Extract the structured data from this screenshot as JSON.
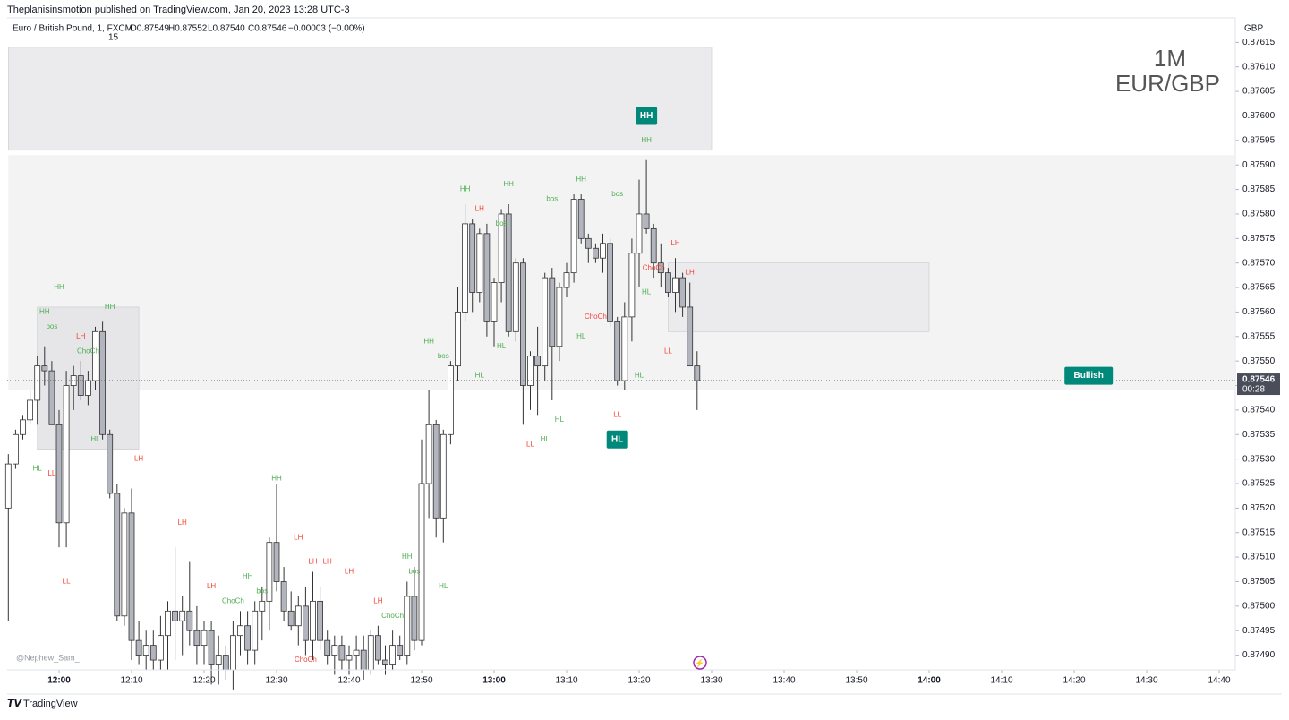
{
  "header": {
    "publisher": "Theplanisinsmotion published on TradingView.com, Jan 20, 2023 13:28 UTC-3",
    "symbol": "Euro / British Pound, 1, FXCM",
    "open": "O0.87549",
    "high": "H0.87552",
    "low": "L0.87540",
    "close": "C0.87546",
    "change": "−0.00003 (−0.00%)",
    "counter": "15"
  },
  "watermark": {
    "interval": "1M",
    "pair": "EUR/GBP"
  },
  "footer": {
    "author": "@Nephew_Sam_",
    "brand": "TradingView"
  },
  "chart_data": {
    "type": "candlestick",
    "currency": "GBP",
    "x": [
      "11:53",
      "11:54",
      "11:55",
      "11:56",
      "11:57",
      "11:58",
      "11:59",
      "12:00",
      "12:01",
      "12:02",
      "12:03",
      "12:04",
      "12:05",
      "12:06",
      "12:07",
      "12:08",
      "12:09",
      "12:10",
      "12:11",
      "12:12",
      "12:13",
      "12:14",
      "12:15",
      "12:16",
      "12:17",
      "12:18",
      "12:19",
      "12:20",
      "12:21",
      "12:22",
      "12:23",
      "12:24",
      "12:25",
      "12:26",
      "12:27",
      "12:28",
      "12:29",
      "12:30",
      "12:31",
      "12:32",
      "12:33",
      "12:34",
      "12:35",
      "12:36",
      "12:37",
      "12:38",
      "12:39",
      "12:40",
      "12:41",
      "12:42",
      "12:43",
      "12:44",
      "12:45",
      "12:46",
      "12:47",
      "12:48",
      "12:49",
      "12:50",
      "12:51",
      "12:52",
      "12:53",
      "12:54",
      "12:55",
      "12:56",
      "12:57",
      "12:58",
      "12:59",
      "13:00",
      "13:01",
      "13:02",
      "13:03",
      "13:04",
      "13:05",
      "13:06",
      "13:07",
      "13:08",
      "13:09",
      "13:10",
      "13:11",
      "13:12",
      "13:13",
      "13:14",
      "13:15",
      "13:16",
      "13:17",
      "13:18",
      "13:19",
      "13:20",
      "13:21",
      "13:22",
      "13:23",
      "13:24",
      "13:25",
      "13:26",
      "13:27",
      "13:28"
    ],
    "ohlc": [
      [
        0.8752,
        0.87531,
        0.87497,
        0.87529
      ],
      [
        0.87529,
        0.87536,
        0.87528,
        0.87535
      ],
      [
        0.87535,
        0.87539,
        0.87534,
        0.87538
      ],
      [
        0.87538,
        0.87544,
        0.87537,
        0.87542
      ],
      [
        0.87542,
        0.87551,
        0.87537,
        0.87549
      ],
      [
        0.87549,
        0.87553,
        0.87545,
        0.87548
      ],
      [
        0.87548,
        0.8755,
        0.87537,
        0.87537
      ],
      [
        0.87537,
        0.8754,
        0.87512,
        0.87517
      ],
      [
        0.87517,
        0.87548,
        0.87512,
        0.87545
      ],
      [
        0.87545,
        0.87549,
        0.8754,
        0.87547
      ],
      [
        0.87547,
        0.8755,
        0.87542,
        0.87543
      ],
      [
        0.87543,
        0.87548,
        0.87541,
        0.87546
      ],
      [
        0.87546,
        0.87557,
        0.87544,
        0.87556
      ],
      [
        0.87556,
        0.87558,
        0.87534,
        0.87535
      ],
      [
        0.87535,
        0.87536,
        0.87522,
        0.87523
      ],
      [
        0.87523,
        0.87525,
        0.87497,
        0.87498
      ],
      [
        0.87498,
        0.8752,
        0.87496,
        0.87519
      ],
      [
        0.87519,
        0.87524,
        0.87489,
        0.87493
      ],
      [
        0.87493,
        0.87497,
        0.87488,
        0.8749
      ],
      [
        0.8749,
        0.87495,
        0.87487,
        0.87492
      ],
      [
        0.87492,
        0.87495,
        0.87487,
        0.87489
      ],
      [
        0.87489,
        0.87498,
        0.87487,
        0.87494
      ],
      [
        0.87494,
        0.87501,
        0.87487,
        0.87499
      ],
      [
        0.87499,
        0.87512,
        0.87489,
        0.87497
      ],
      [
        0.87497,
        0.87502,
        0.8749,
        0.87499
      ],
      [
        0.87499,
        0.87509,
        0.87492,
        0.87495
      ],
      [
        0.87495,
        0.875,
        0.87488,
        0.87492
      ],
      [
        0.87492,
        0.87497,
        0.87488,
        0.87495
      ],
      [
        0.87495,
        0.87497,
        0.87484,
        0.87488
      ],
      [
        0.87488,
        0.87494,
        0.87484,
        0.8749
      ],
      [
        0.8749,
        0.87492,
        0.87485,
        0.87487
      ],
      [
        0.87487,
        0.87497,
        0.87483,
        0.87494
      ],
      [
        0.87494,
        0.87499,
        0.8749,
        0.87496
      ],
      [
        0.87496,
        0.87499,
        0.87488,
        0.87491
      ],
      [
        0.87491,
        0.87501,
        0.87488,
        0.87499
      ],
      [
        0.87499,
        0.87504,
        0.87493,
        0.87501
      ],
      [
        0.87501,
        0.87514,
        0.87495,
        0.87513
      ],
      [
        0.87513,
        0.87525,
        0.87503,
        0.87505
      ],
      [
        0.87505,
        0.87508,
        0.87497,
        0.87499
      ],
      [
        0.87499,
        0.87503,
        0.87495,
        0.87496
      ],
      [
        0.87496,
        0.87502,
        0.87492,
        0.875
      ],
      [
        0.875,
        0.87504,
        0.8749,
        0.87493
      ],
      [
        0.87493,
        0.87507,
        0.87489,
        0.87501
      ],
      [
        0.87501,
        0.87504,
        0.87491,
        0.87493
      ],
      [
        0.87493,
        0.87495,
        0.87488,
        0.8749
      ],
      [
        0.8749,
        0.87494,
        0.87486,
        0.87492
      ],
      [
        0.87492,
        0.87494,
        0.87487,
        0.87489
      ],
      [
        0.87489,
        0.87492,
        0.87486,
        0.8749
      ],
      [
        0.8749,
        0.87494,
        0.87487,
        0.87491
      ],
      [
        0.87491,
        0.87494,
        0.87485,
        0.87487
      ],
      [
        0.87487,
        0.87495,
        0.87486,
        0.87494
      ],
      [
        0.87494,
        0.87496,
        0.87488,
        0.87489
      ],
      [
        0.87489,
        0.87492,
        0.87486,
        0.87488
      ],
      [
        0.87488,
        0.87495,
        0.87487,
        0.87492
      ],
      [
        0.87492,
        0.87494,
        0.87489,
        0.8749
      ],
      [
        0.8749,
        0.87505,
        0.87488,
        0.87502
      ],
      [
        0.87502,
        0.87508,
        0.87491,
        0.87493
      ],
      [
        0.87493,
        0.87534,
        0.87492,
        0.87525
      ],
      [
        0.87525,
        0.87544,
        0.87518,
        0.87537
      ],
      [
        0.87537,
        0.87538,
        0.87514,
        0.87518
      ],
      [
        0.87518,
        0.87536,
        0.87513,
        0.87535
      ],
      [
        0.87535,
        0.8755,
        0.87533,
        0.87549
      ],
      [
        0.87549,
        0.87565,
        0.87546,
        0.8756
      ],
      [
        0.8756,
        0.87582,
        0.87558,
        0.87578
      ],
      [
        0.87578,
        0.87579,
        0.8756,
        0.87564
      ],
      [
        0.87564,
        0.87577,
        0.87562,
        0.87576
      ],
      [
        0.87576,
        0.87578,
        0.87555,
        0.87558
      ],
      [
        0.87558,
        0.87567,
        0.87553,
        0.87566
      ],
      [
        0.87566,
        0.87581,
        0.87562,
        0.8758
      ],
      [
        0.8758,
        0.87582,
        0.87555,
        0.87556
      ],
      [
        0.87556,
        0.87571,
        0.87554,
        0.8757
      ],
      [
        0.8757,
        0.87571,
        0.87537,
        0.87545
      ],
      [
        0.87545,
        0.87552,
        0.8754,
        0.87551
      ],
      [
        0.87551,
        0.87557,
        0.87539,
        0.87549
      ],
      [
        0.87549,
        0.87568,
        0.87546,
        0.87567
      ],
      [
        0.87567,
        0.87569,
        0.87542,
        0.87553
      ],
      [
        0.87553,
        0.87566,
        0.8755,
        0.87565
      ],
      [
        0.87565,
        0.8757,
        0.87563,
        0.87568
      ],
      [
        0.87568,
        0.87584,
        0.87566,
        0.87583
      ],
      [
        0.87583,
        0.87584,
        0.87574,
        0.87575
      ],
      [
        0.87575,
        0.87576,
        0.8757,
        0.87573
      ],
      [
        0.87573,
        0.87574,
        0.8757,
        0.87571
      ],
      [
        0.87571,
        0.87576,
        0.87568,
        0.87574
      ],
      [
        0.87574,
        0.87575,
        0.87557,
        0.87558
      ],
      [
        0.87558,
        0.87559,
        0.87545,
        0.87546
      ],
      [
        0.87546,
        0.87562,
        0.87544,
        0.87559
      ],
      [
        0.87559,
        0.87575,
        0.87554,
        0.87572
      ],
      [
        0.87572,
        0.87587,
        0.87565,
        0.8758
      ],
      [
        0.8758,
        0.87591,
        0.87576,
        0.87577
      ],
      [
        0.87577,
        0.87578,
        0.87567,
        0.8757
      ],
      [
        0.8757,
        0.87574,
        0.87565,
        0.87568
      ],
      [
        0.87568,
        0.87569,
        0.87563,
        0.87564
      ],
      [
        0.87564,
        0.87571,
        0.8756,
        0.87567
      ],
      [
        0.87567,
        0.87568,
        0.87559,
        0.87561
      ],
      [
        0.87561,
        0.87566,
        0.8755,
        0.87549
      ],
      [
        0.87549,
        0.87552,
        0.8754,
        0.87546
      ]
    ],
    "up_color": "#ffffff",
    "down_color": "#b2b5be",
    "wick_color": "#333333",
    "ylim": [
      0.87487,
      0.8762
    ],
    "yticks": [
      {
        "value": 0.8749,
        "label": "0.87490"
      },
      {
        "value": 0.87495,
        "label": "0.87495"
      },
      {
        "value": 0.875,
        "label": "0.87500"
      },
      {
        "value": 0.87505,
        "label": "0.87505"
      },
      {
        "value": 0.8751,
        "label": "0.87510"
      },
      {
        "value": 0.87515,
        "label": "0.87515"
      },
      {
        "value": 0.8752,
        "label": "0.87520"
      },
      {
        "value": 0.87525,
        "label": "0.87525"
      },
      {
        "value": 0.8753,
        "label": "0.87530"
      },
      {
        "value": 0.87535,
        "label": "0.87535"
      },
      {
        "value": 0.8754,
        "label": "0.87540"
      },
      {
        "value": 0.87545,
        "label": "0.87545"
      },
      {
        "value": 0.8755,
        "label": "0.87550"
      },
      {
        "value": 0.87555,
        "label": "0.87555"
      },
      {
        "value": 0.8756,
        "label": "0.87560"
      },
      {
        "value": 0.87565,
        "label": "0.87565"
      },
      {
        "value": 0.8757,
        "label": "0.87570"
      },
      {
        "value": 0.87575,
        "label": "0.87575"
      },
      {
        "value": 0.8758,
        "label": "0.87580"
      },
      {
        "value": 0.87585,
        "label": "0.87585"
      },
      {
        "value": 0.8759,
        "label": "0.87590"
      },
      {
        "value": 0.87595,
        "label": "0.87595"
      },
      {
        "value": 0.876,
        "label": "0.87600"
      },
      {
        "value": 0.87605,
        "label": "0.87605"
      },
      {
        "value": 0.8761,
        "label": "0.87610"
      },
      {
        "value": 0.87615,
        "label": "0.87615"
      }
    ],
    "xticks": [
      "12:00",
      "12:10",
      "12:20",
      "12:30",
      "12:40",
      "12:50",
      "13:00",
      "13:10",
      "13:20",
      "13:30",
      "13:40",
      "13:50",
      "14:00",
      "14:10",
      "14:20",
      "14:30",
      "14:40"
    ],
    "last_price": {
      "value": 0.87546,
      "label": "0.87546",
      "countdown": "00:28"
    },
    "zones": [
      {
        "x": [
          "11:53",
          "14:42"
        ],
        "y": [
          0.87544,
          0.87592
        ],
        "color": "#f3f3f4"
      },
      {
        "x": [
          "11:53",
          "13:30"
        ],
        "y": [
          0.87593,
          0.87614
        ],
        "color": "#ebebed"
      },
      {
        "x": [
          "11:57",
          "12:11"
        ],
        "y": [
          0.87532,
          0.87561
        ],
        "color": "#e6e6e8"
      },
      {
        "x": [
          "13:24",
          "14:00"
        ],
        "y": [
          0.87556,
          0.8757
        ],
        "color": "#ebebed"
      }
    ],
    "annotations": [
      {
        "text": "HH",
        "x": "12:00",
        "y": 0.87565,
        "color": "#4caf50"
      },
      {
        "text": "HH",
        "x": "11:58",
        "y": 0.8756,
        "color": "#4caf50"
      },
      {
        "text": "bos",
        "x": "11:59",
        "y": 0.87557,
        "color": "#4caf50"
      },
      {
        "text": "LH",
        "x": "12:03",
        "y": 0.87555,
        "color": "#f44336"
      },
      {
        "text": "ChoCh",
        "x": "12:04",
        "y": 0.87552,
        "color": "#4caf50"
      },
      {
        "text": "HH",
        "x": "12:07",
        "y": 0.87561,
        "color": "#4caf50"
      },
      {
        "text": "HL",
        "x": "11:57",
        "y": 0.87528,
        "color": "#4caf50"
      },
      {
        "text": "LL",
        "x": "11:59",
        "y": 0.87527,
        "color": "#f44336"
      },
      {
        "text": "HL",
        "x": "12:05",
        "y": 0.87534,
        "color": "#4caf50"
      },
      {
        "text": "LL",
        "x": "12:01",
        "y": 0.87505,
        "color": "#f44336"
      },
      {
        "text": "LH",
        "x": "12:11",
        "y": 0.8753,
        "color": "#f44336"
      },
      {
        "text": "LH",
        "x": "12:17",
        "y": 0.87517,
        "color": "#f44336"
      },
      {
        "text": "LH",
        "x": "12:21",
        "y": 0.87504,
        "color": "#f44336"
      },
      {
        "text": "HH",
        "x": "12:26",
        "y": 0.87506,
        "color": "#4caf50"
      },
      {
        "text": "ChoCh",
        "x": "12:24",
        "y": 0.87501,
        "color": "#4caf50"
      },
      {
        "text": "bos",
        "x": "12:28",
        "y": 0.87503,
        "color": "#4caf50"
      },
      {
        "text": "HH",
        "x": "12:30",
        "y": 0.87526,
        "color": "#4caf50"
      },
      {
        "text": "LH",
        "x": "12:33",
        "y": 0.87514,
        "color": "#f44336"
      },
      {
        "text": "LH",
        "x": "12:35",
        "y": 0.87509,
        "color": "#f44336"
      },
      {
        "text": "LH",
        "x": "12:37",
        "y": 0.87509,
        "color": "#f44336"
      },
      {
        "text": "LH",
        "x": "12:40",
        "y": 0.87507,
        "color": "#f44336"
      },
      {
        "text": "LH",
        "x": "12:44",
        "y": 0.87501,
        "color": "#f44336"
      },
      {
        "text": "ChoCh",
        "x": "12:46",
        "y": 0.87498,
        "color": "#4caf50"
      },
      {
        "text": "ChoCh",
        "x": "12:34",
        "y": 0.87489,
        "color": "#f44336"
      },
      {
        "text": "HH",
        "x": "12:48",
        "y": 0.8751,
        "color": "#4caf50"
      },
      {
        "text": "bos",
        "x": "12:49",
        "y": 0.87507,
        "color": "#4caf50"
      },
      {
        "text": "HL",
        "x": "12:53",
        "y": 0.87504,
        "color": "#4caf50"
      },
      {
        "text": "HH",
        "x": "12:51",
        "y": 0.87554,
        "color": "#4caf50"
      },
      {
        "text": "bos",
        "x": "12:53",
        "y": 0.87551,
        "color": "#4caf50"
      },
      {
        "text": "HL",
        "x": "12:58",
        "y": 0.87547,
        "color": "#4caf50"
      },
      {
        "text": "HH",
        "x": "12:56",
        "y": 0.87585,
        "color": "#4caf50"
      },
      {
        "text": "LH",
        "x": "12:58",
        "y": 0.87581,
        "color": "#f44336"
      },
      {
        "text": "HH",
        "x": "13:02",
        "y": 0.87586,
        "color": "#4caf50"
      },
      {
        "text": "bos",
        "x": "13:01",
        "y": 0.87578,
        "color": "#4caf50"
      },
      {
        "text": "bos",
        "x": "13:08",
        "y": 0.87583,
        "color": "#4caf50"
      },
      {
        "text": "HH",
        "x": "13:12",
        "y": 0.87587,
        "color": "#4caf50"
      },
      {
        "text": "bos",
        "x": "13:17",
        "y": 0.87584,
        "color": "#4caf50"
      },
      {
        "text": "HL",
        "x": "13:01",
        "y": 0.87553,
        "color": "#4caf50"
      },
      {
        "text": "LL",
        "x": "13:05",
        "y": 0.87533,
        "color": "#f44336"
      },
      {
        "text": "HL",
        "x": "13:07",
        "y": 0.87534,
        "color": "#4caf50"
      },
      {
        "text": "HL",
        "x": "13:09",
        "y": 0.87538,
        "color": "#4caf50"
      },
      {
        "text": "HL",
        "x": "13:12",
        "y": 0.87555,
        "color": "#4caf50"
      },
      {
        "text": "ChoCh",
        "x": "13:14",
        "y": 0.87559,
        "color": "#f44336"
      },
      {
        "text": "HL",
        "x": "13:20",
        "y": 0.87547,
        "color": "#4caf50"
      },
      {
        "text": "LL",
        "x": "13:17",
        "y": 0.87539,
        "color": "#f44336"
      },
      {
        "text": "HH",
        "x": "13:21",
        "y": 0.87595,
        "color": "#4caf50"
      },
      {
        "text": "LH",
        "x": "13:25",
        "y": 0.87574,
        "color": "#f44336"
      },
      {
        "text": "LH",
        "x": "13:27",
        "y": 0.87568,
        "color": "#f44336"
      },
      {
        "text": "HL",
        "x": "13:21",
        "y": 0.87564,
        "color": "#4caf50"
      },
      {
        "text": "LL",
        "x": "13:24",
        "y": 0.87552,
        "color": "#f44336"
      },
      {
        "text": "ChoCh",
        "x": "13:22",
        "y": 0.87569,
        "color": "#f44336"
      }
    ],
    "badges": [
      {
        "text": "HH",
        "x": "13:21",
        "y": 0.876,
        "color": "#00897b"
      },
      {
        "text": "HL",
        "x": "13:17",
        "y": 0.87534,
        "color": "#00897b"
      },
      {
        "text": "Bullish",
        "x": "14:22",
        "y": 0.87547,
        "color": "#00897b"
      }
    ]
  }
}
